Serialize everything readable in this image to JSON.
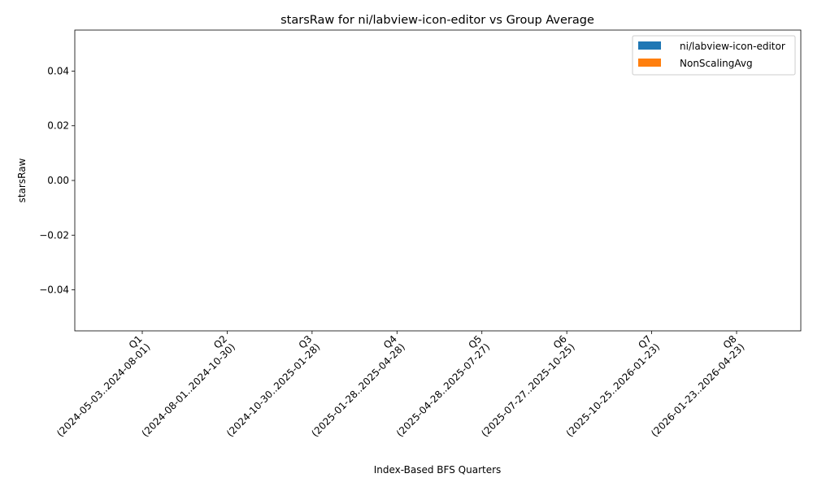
{
  "chart_data": {
    "type": "bar",
    "title": "starsRaw for ni/labview-icon-editor vs Group Average",
    "xlabel": "Index-Based BFS Quarters",
    "ylabel": "starsRaw",
    "categories": [
      [
        "Q1",
        "(2024-05-03..2024-08-01)"
      ],
      [
        "Q2",
        "(2024-08-01..2024-10-30)"
      ],
      [
        "Q3",
        "(2024-10-30..2025-01-28)"
      ],
      [
        "Q4",
        "(2025-01-28..2025-04-28)"
      ],
      [
        "Q5",
        "(2025-04-28..2025-07-27)"
      ],
      [
        "Q6",
        "(2025-07-27..2025-10-25)"
      ],
      [
        "Q7",
        "(2025-10-25..2026-01-23)"
      ],
      [
        "Q8",
        "(2026-01-23..2026-04-23)"
      ]
    ],
    "series": [
      {
        "name": "ni/labview-icon-editor",
        "values": [
          0,
          0,
          0,
          0,
          0,
          0,
          0,
          0
        ],
        "color": "#1f77b4"
      },
      {
        "name": "NonScalingAvg",
        "values": [
          0,
          0,
          0,
          0,
          0,
          0,
          0,
          0
        ],
        "color": "#ff7f0e"
      }
    ],
    "ylim": [
      -0.055,
      0.055
    ],
    "yticks": [
      "0.04",
      "0.02",
      "0.00",
      "−0.02",
      "−0.04"
    ],
    "ytick_values": [
      0.04,
      0.02,
      0.0,
      -0.02,
      -0.04
    ],
    "grid": false,
    "legend_position": "top-right"
  }
}
